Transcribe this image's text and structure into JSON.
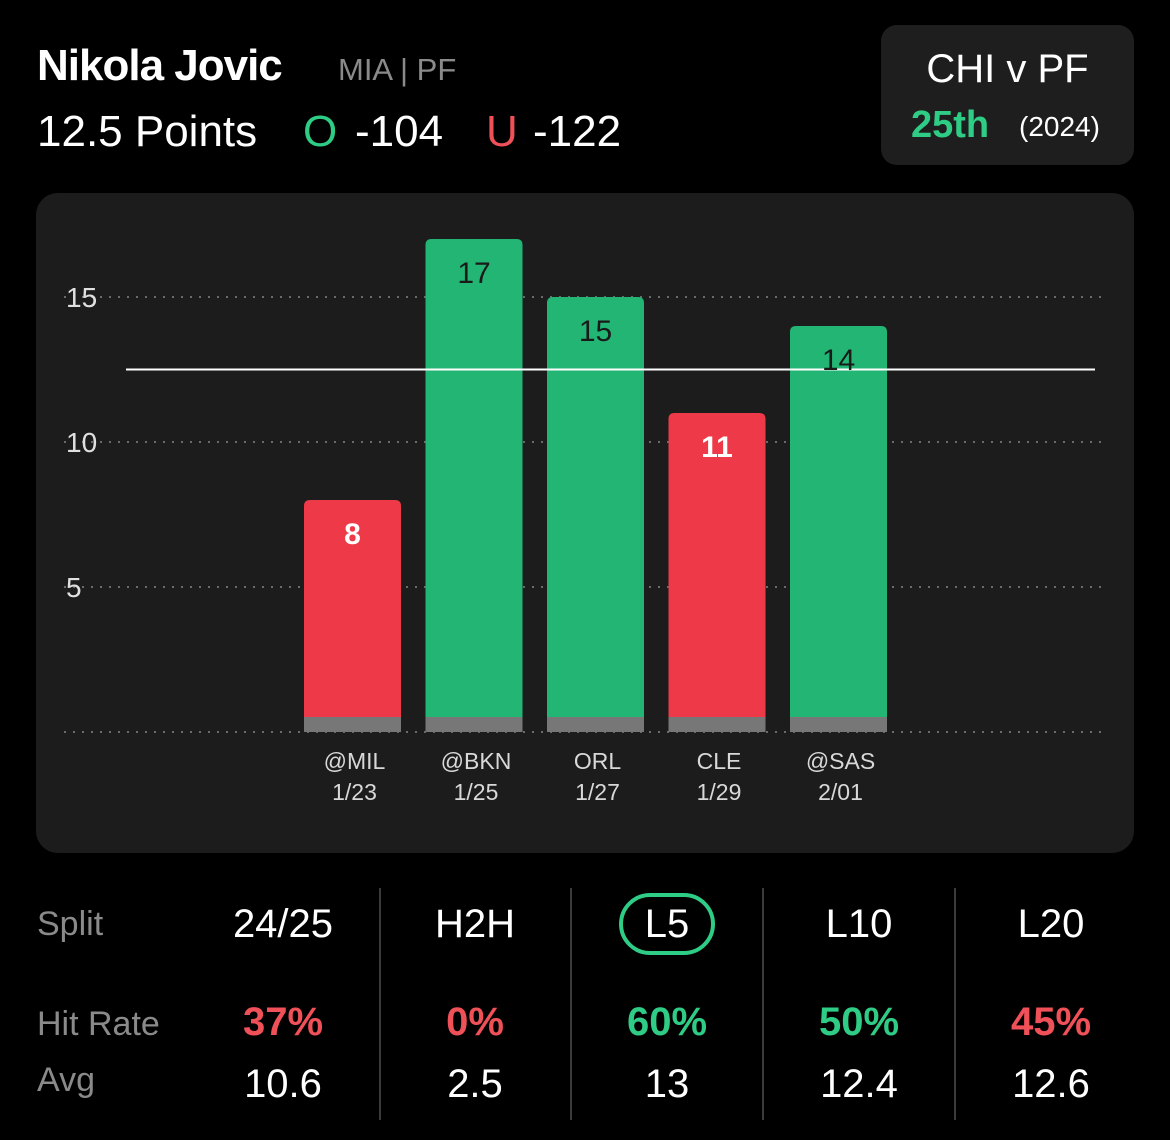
{
  "player": {
    "name": "Nikola Jovic",
    "meta": "MIA | PF",
    "prop": "12.5 Points",
    "over_letter": "O",
    "over_price": "-104",
    "under_letter": "U",
    "under_price": "-122"
  },
  "matchup": {
    "title": "CHI v PF",
    "rank": "25th",
    "season": "(2024)"
  },
  "colors": {
    "over": "#2ecc85",
    "under": "#f05058",
    "bar_over": "#22b573",
    "bar_under": "#ee3a48"
  },
  "chart_data": {
    "type": "bar",
    "categories": [
      [
        "@MIL",
        "1/23"
      ],
      [
        "@BKN",
        "1/25"
      ],
      [
        "ORL",
        "1/27"
      ],
      [
        "CLE",
        "1/29"
      ],
      [
        "@SAS",
        "2/01"
      ]
    ],
    "values": [
      8,
      17,
      15,
      11,
      14
    ],
    "threshold": 12.5,
    "ylim": [
      0,
      17
    ],
    "yticks": [
      5,
      10,
      15
    ],
    "grid": true,
    "title": "",
    "xlabel": "",
    "ylabel": ""
  },
  "stats": {
    "split_label": "Split",
    "hit_rate_label": "Hit Rate",
    "avg_label": "Avg",
    "columns": [
      {
        "header": "24/25",
        "hit_rate": "37%",
        "avg": "10.6",
        "good": false,
        "active": false
      },
      {
        "header": "H2H",
        "hit_rate": "0%",
        "avg": "2.5",
        "good": false,
        "active": false
      },
      {
        "header": "L5",
        "hit_rate": "60%",
        "avg": "13",
        "good": true,
        "active": true
      },
      {
        "header": "L10",
        "hit_rate": "50%",
        "avg": "12.4",
        "good": true,
        "active": false
      },
      {
        "header": "L20",
        "hit_rate": "45%",
        "avg": "12.6",
        "good": false,
        "active": false
      }
    ]
  }
}
